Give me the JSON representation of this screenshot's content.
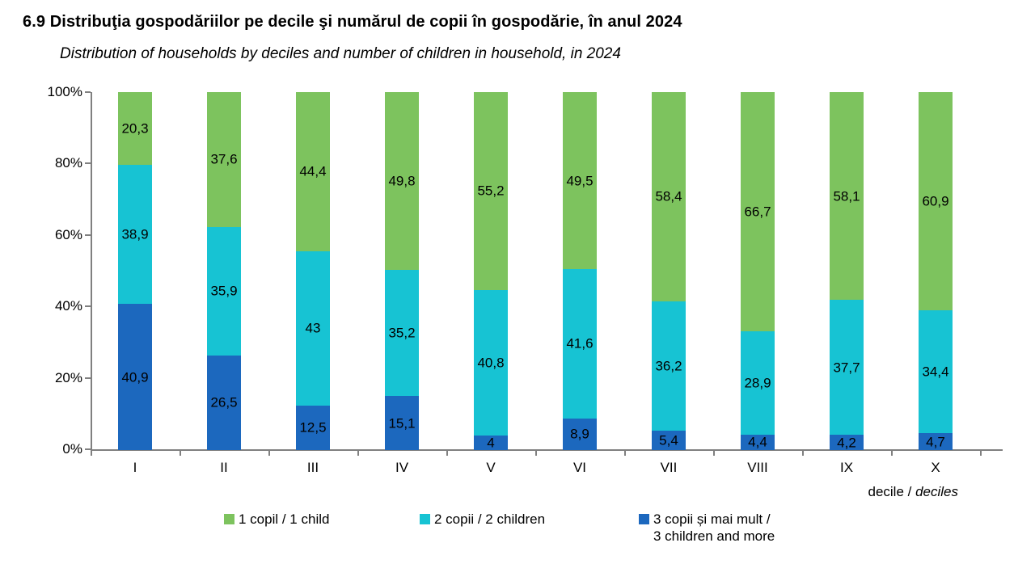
{
  "title": "6.9 Distribuţia gospodăriilor pe decile şi numărul de copii în gospodărie, în anul 2024",
  "subtitle": "Distribution of households by deciles and number of children in household, in 2024",
  "axis_caption": {
    "normal": "decile / ",
    "italic": "deciles"
  },
  "colors": {
    "green": "#7DC35E",
    "cyan": "#17C3D3",
    "blue": "#1C68BE",
    "axis": "#808080",
    "label_text": "#000000"
  },
  "chart_data": {
    "type": "bar",
    "stacked": true,
    "title": "6.9 Distribuţia gospodăriilor pe decile şi numărul de copii în gospodărie, în anul 2024",
    "subtitle": "Distribution of households by deciles and number of children in household, in 2024",
    "categories": [
      "I",
      "II",
      "III",
      "IV",
      "V",
      "VI",
      "VII",
      "VIII",
      "IX",
      "X"
    ],
    "series": [
      {
        "name": "3 copii și mai mult / 3 children and more",
        "color": "#1C68BE",
        "values": [
          40.9,
          26.5,
          12.5,
          15.1,
          4,
          8.9,
          5.4,
          4.4,
          4.2,
          4.7
        ],
        "labels": [
          "40,9",
          "26,5",
          "12,5",
          "15,1",
          "4",
          "8,9",
          "5,4",
          "4,4",
          "4,2",
          "4,7"
        ]
      },
      {
        "name": "2 copii / 2 children",
        "color": "#17C3D3",
        "values": [
          38.9,
          35.9,
          43,
          35.2,
          40.8,
          41.6,
          36.2,
          28.9,
          37.7,
          34.4
        ],
        "labels": [
          "38,9",
          "35,9",
          "43",
          "35,2",
          "40,8",
          "41,6",
          "36,2",
          "28,9",
          "37,7",
          "34,4"
        ]
      },
      {
        "name": "1 copil / 1 child",
        "color": "#7DC35E",
        "values": [
          20.3,
          37.6,
          44.4,
          49.8,
          55.2,
          49.5,
          58.4,
          66.7,
          58.1,
          60.9
        ],
        "labels": [
          "20,3",
          "37,6",
          "44,4",
          "49,8",
          "55,2",
          "49,5",
          "58,4",
          "66,7",
          "58,1",
          "60,9"
        ]
      }
    ],
    "yticks": [
      {
        "label": "0%",
        "value": 0
      },
      {
        "label": "20%",
        "value": 20
      },
      {
        "label": "40%",
        "value": 40
      },
      {
        "label": "60%",
        "value": 60
      },
      {
        "label": "80%",
        "value": 80
      },
      {
        "label": "100%",
        "value": 100
      }
    ],
    "ylim": [
      0,
      100
    ],
    "xlabel": "decile / deciles",
    "grid": false,
    "legend_position": "bottom"
  },
  "legend": [
    {
      "lines": [
        "1 copil / 1 child"
      ],
      "color": "#7DC35E",
      "x": 277
    },
    {
      "lines": [
        "2 copii / 2 children"
      ],
      "color": "#17C3D3",
      "x": 519
    },
    {
      "lines": [
        "3 copii și mai mult /",
        "3 children and more"
      ],
      "color": "#1C68BE",
      "x": 790
    }
  ]
}
